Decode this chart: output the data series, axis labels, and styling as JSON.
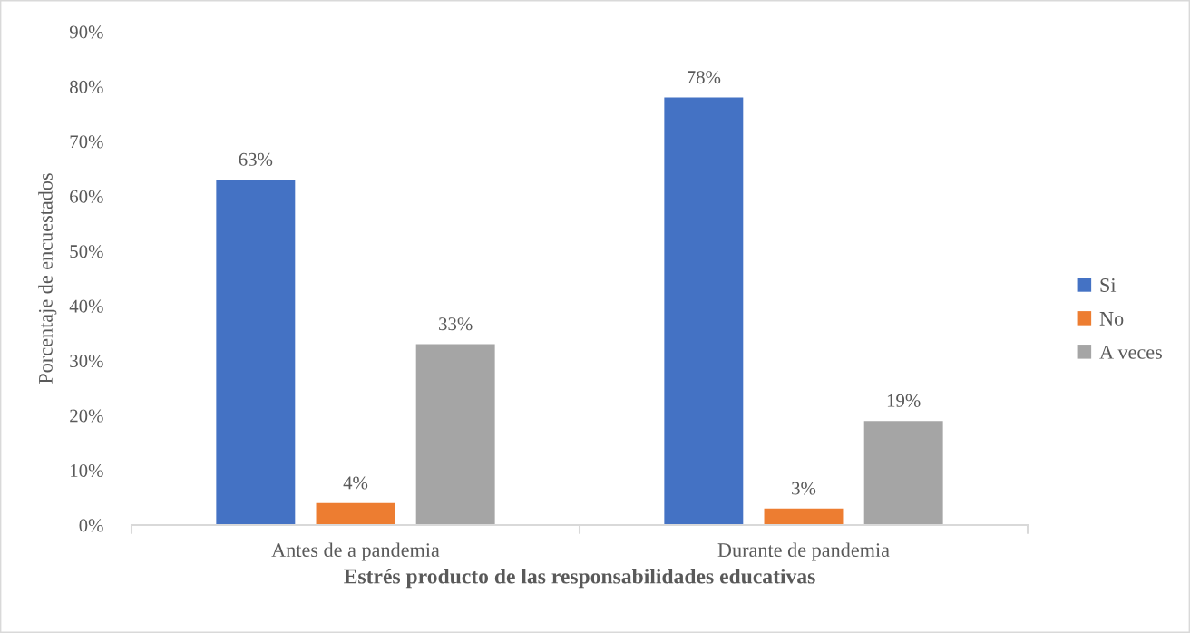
{
  "chart_data": {
    "type": "bar",
    "xlabel": "Estrés producto de las responsabilidades educativas",
    "ylabel": "Porcentaje de encuestados",
    "categories": [
      "Antes de a pandemia",
      "Durante de pandemia"
    ],
    "series": [
      {
        "name": "Si",
        "color": "#4472c4",
        "values": [
          63,
          78
        ],
        "value_labels": [
          "63%",
          "78%"
        ]
      },
      {
        "name": "No",
        "color": "#ed7d31",
        "values": [
          4,
          3
        ],
        "value_labels": [
          "4%",
          "3%"
        ]
      },
      {
        "name": "A veces",
        "color": "#a5a5a5",
        "values": [
          33,
          19
        ],
        "value_labels": [
          "33%",
          "19%"
        ]
      }
    ],
    "ylim": [
      0,
      90
    ],
    "yticks": [
      {
        "value": 0,
        "label": "0%"
      },
      {
        "value": 10,
        "label": "10%"
      },
      {
        "value": 20,
        "label": "20%"
      },
      {
        "value": 30,
        "label": "30%"
      },
      {
        "value": 40,
        "label": "40%"
      },
      {
        "value": 50,
        "label": "50%"
      },
      {
        "value": 60,
        "label": "60%"
      },
      {
        "value": 70,
        "label": "70%"
      },
      {
        "value": 80,
        "label": "80%"
      },
      {
        "value": 90,
        "label": "90%"
      }
    ],
    "legend": "right"
  }
}
